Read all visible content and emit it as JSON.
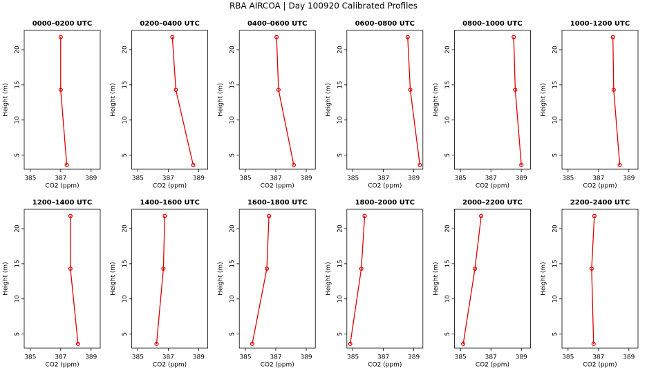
{
  "title": "RBA AIRCOA | Day 100920  Calibrated Profiles",
  "chart_data": [
    {
      "type": "line",
      "title": "0000–0200 UTC",
      "xlabel": "CO2 (ppm)",
      "ylabel": "Height (m)",
      "x": [
        387.4,
        387.0,
        387.0
      ],
      "values": [
        3.6,
        14.3,
        21.8
      ],
      "color": "#e00000",
      "xlim": [
        384.6,
        389.6
      ],
      "xticks": [
        385,
        387,
        389
      ],
      "ylim": [
        3.0,
        22.75
      ],
      "yticks": [
        5,
        10,
        15,
        20
      ]
    },
    {
      "type": "line",
      "title": "0200–0400 UTC",
      "xlabel": "CO2 (ppm)",
      "ylabel": "Height (m)",
      "x": [
        388.64,
        387.5,
        387.27
      ],
      "values": [
        3.6,
        14.3,
        21.8
      ],
      "color": "#e00000",
      "xlim": [
        384.6,
        389.6
      ],
      "xticks": [
        385,
        387,
        389
      ],
      "ylim": [
        3.0,
        22.75
      ],
      "yticks": [
        5,
        10,
        15,
        20
      ]
    },
    {
      "type": "line",
      "title": "0400–0600 UTC",
      "xlabel": "CO2 (ppm)",
      "ylabel": "Height (m)",
      "x": [
        388.18,
        387.18,
        387.05
      ],
      "values": [
        3.6,
        14.3,
        21.8
      ],
      "color": "#e00000",
      "xlim": [
        384.6,
        389.6
      ],
      "xticks": [
        385,
        387,
        389
      ],
      "ylim": [
        3.0,
        22.75
      ],
      "yticks": [
        5,
        10,
        15,
        20
      ]
    },
    {
      "type": "line",
      "title": "0600–0800 UTC",
      "xlabel": "CO2 (ppm)",
      "ylabel": "Height (m)",
      "x": [
        389.4,
        388.77,
        388.6
      ],
      "values": [
        3.6,
        14.3,
        21.8
      ],
      "color": "#e00000",
      "xlim": [
        384.6,
        389.6
      ],
      "xticks": [
        385,
        387,
        389
      ],
      "ylim": [
        3.0,
        22.75
      ],
      "yticks": [
        5,
        10,
        15,
        20
      ]
    },
    {
      "type": "line",
      "title": "0800–1000 UTC",
      "xlabel": "CO2 (ppm)",
      "ylabel": "Height (m)",
      "x": [
        389.0,
        388.6,
        388.5
      ],
      "values": [
        3.6,
        14.3,
        21.8
      ],
      "color": "#e00000",
      "xlim": [
        384.6,
        389.6
      ],
      "xticks": [
        385,
        387,
        389
      ],
      "ylim": [
        3.0,
        22.75
      ],
      "yticks": [
        5,
        10,
        15,
        20
      ]
    },
    {
      "type": "line",
      "title": "1000–1200 UTC",
      "xlabel": "CO2 (ppm)",
      "ylabel": "Height (m)",
      "x": [
        388.4,
        388.0,
        387.95
      ],
      "values": [
        3.6,
        14.3,
        21.8
      ],
      "color": "#e00000",
      "xlim": [
        384.6,
        389.6
      ],
      "xticks": [
        385,
        387,
        389
      ],
      "ylim": [
        3.0,
        22.75
      ],
      "yticks": [
        5,
        10,
        15,
        20
      ]
    },
    {
      "type": "line",
      "title": "1200–1400 UTC",
      "xlabel": "CO2 (ppm)",
      "ylabel": "Height (m)",
      "x": [
        388.14,
        387.64,
        387.64
      ],
      "values": [
        3.6,
        14.3,
        21.8
      ],
      "color": "#e00000",
      "xlim": [
        384.6,
        389.6
      ],
      "xticks": [
        385,
        387,
        389
      ],
      "ylim": [
        3.0,
        22.75
      ],
      "yticks": [
        5,
        10,
        15,
        20
      ]
    },
    {
      "type": "line",
      "title": "1400–1600 UTC",
      "xlabel": "CO2 (ppm)",
      "ylabel": "Height (m)",
      "x": [
        386.23,
        386.68,
        386.77
      ],
      "values": [
        3.6,
        14.3,
        21.8
      ],
      "color": "#e00000",
      "xlim": [
        384.6,
        389.6
      ],
      "xticks": [
        385,
        387,
        389
      ],
      "ylim": [
        3.0,
        22.75
      ],
      "yticks": [
        5,
        10,
        15,
        20
      ]
    },
    {
      "type": "line",
      "title": "1600–1800 UTC",
      "xlabel": "CO2 (ppm)",
      "ylabel": "Height (m)",
      "x": [
        385.45,
        386.41,
        386.55
      ],
      "values": [
        3.6,
        14.3,
        21.8
      ],
      "color": "#e00000",
      "xlim": [
        384.6,
        389.6
      ],
      "xticks": [
        385,
        387,
        389
      ],
      "ylim": [
        3.0,
        22.75
      ],
      "yticks": [
        5,
        10,
        15,
        20
      ]
    },
    {
      "type": "line",
      "title": "1800–2000 UTC",
      "xlabel": "CO2 (ppm)",
      "ylabel": "Height (m)",
      "x": [
        384.82,
        385.55,
        385.77
      ],
      "values": [
        3.6,
        14.3,
        21.8
      ],
      "color": "#e00000",
      "xlim": [
        384.6,
        389.6
      ],
      "xticks": [
        385,
        387,
        389
      ],
      "ylim": [
        3.0,
        22.75
      ],
      "yticks": [
        5,
        10,
        15,
        20
      ]
    },
    {
      "type": "line",
      "title": "2000–2200 UTC",
      "xlabel": "CO2 (ppm)",
      "ylabel": "Height (m)",
      "x": [
        385.18,
        385.95,
        386.36
      ],
      "values": [
        3.6,
        14.3,
        21.8
      ],
      "color": "#e00000",
      "xlim": [
        384.6,
        389.6
      ],
      "xticks": [
        385,
        387,
        389
      ],
      "ylim": [
        3.0,
        22.75
      ],
      "yticks": [
        5,
        10,
        15,
        20
      ]
    },
    {
      "type": "line",
      "title": "2200–2400 UTC",
      "xlabel": "CO2 (ppm)",
      "ylabel": "Height (m)",
      "x": [
        386.68,
        386.55,
        386.73
      ],
      "values": [
        3.6,
        14.3,
        21.8
      ],
      "color": "#e00000",
      "xlim": [
        384.6,
        389.6
      ],
      "xticks": [
        385,
        387,
        389
      ],
      "ylim": [
        3.0,
        22.75
      ],
      "yticks": [
        5,
        10,
        15,
        20
      ]
    }
  ]
}
